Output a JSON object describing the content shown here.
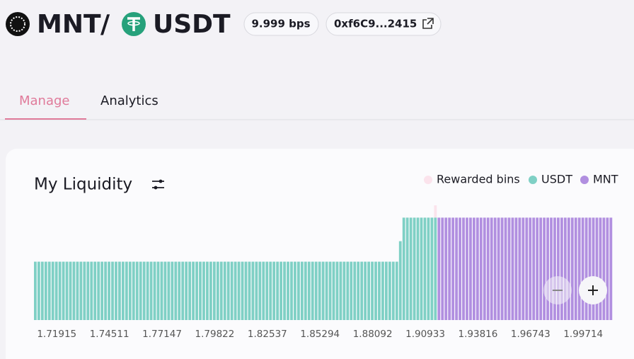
{
  "header": {
    "base": "MNT",
    "separator": "/",
    "quote": "USDT",
    "fee": "9.999 bps",
    "address": "0xf6C9...2415"
  },
  "tabs": [
    "Manage",
    "Analytics"
  ],
  "chart_data": {
    "type": "bar",
    "title": "My Liquidity",
    "categories": [
      null,
      null,
      null,
      null,
      null,
      null,
      "1.71915",
      null,
      null,
      null,
      null,
      null,
      null,
      null,
      null,
      null,
      null,
      null,
      null,
      null,
      null,
      "1.74511",
      null,
      null,
      null,
      null,
      null,
      null,
      null,
      null,
      null,
      null,
      null,
      null,
      null,
      null,
      "1.77147",
      null,
      null,
      null,
      null,
      null,
      null,
      null,
      null,
      null,
      null,
      null,
      null,
      null,
      null,
      "1.79822",
      null,
      null,
      null,
      null,
      null,
      null,
      null,
      null,
      null,
      null,
      null,
      null,
      null,
      null,
      "1.82537",
      null,
      null,
      null,
      null,
      null,
      null,
      null,
      null,
      null,
      null,
      null,
      null,
      null,
      null,
      "1.85294",
      null,
      null,
      null,
      null,
      null,
      null,
      null,
      null,
      null,
      null,
      null,
      null,
      null,
      null,
      "1.88092",
      null,
      null,
      null,
      null,
      null,
      null,
      null,
      null,
      null,
      null,
      null,
      null,
      null,
      null,
      "1.90933",
      null,
      null,
      null,
      null,
      null,
      null,
      null,
      null,
      null,
      null,
      null,
      null,
      null,
      null,
      "1.93816",
      null,
      null,
      null,
      null,
      null,
      null,
      null,
      null,
      null,
      null,
      null,
      null,
      null,
      null,
      "1.96743",
      null,
      null,
      null,
      null,
      null,
      null,
      null,
      null,
      null,
      null,
      null,
      null,
      null,
      null,
      "1.99714",
      null,
      null,
      null,
      null,
      null,
      null,
      null,
      null
    ],
    "series": [
      {
        "name": "Rewarded bins",
        "color": "#fbe3ec",
        "values": [
          null,
          null,
          null,
          null,
          null,
          null,
          null,
          null,
          null,
          null,
          null,
          null,
          null,
          null,
          null,
          null,
          null,
          null,
          null,
          null,
          null,
          null,
          null,
          null,
          null,
          null,
          null,
          null,
          null,
          null,
          null,
          null,
          null,
          null,
          null,
          null,
          null,
          null,
          null,
          null,
          null,
          null,
          null,
          null,
          null,
          null,
          null,
          null,
          null,
          null,
          null,
          null,
          null,
          null,
          null,
          null,
          null,
          null,
          null,
          null,
          null,
          null,
          null,
          null,
          null,
          null,
          null,
          null,
          null,
          null,
          null,
          null,
          null,
          null,
          null,
          null,
          null,
          null,
          null,
          null,
          null,
          null,
          null,
          null,
          null,
          null,
          null,
          null,
          null,
          null,
          null,
          null,
          null,
          null,
          null,
          null,
          null,
          null,
          null,
          null,
          null,
          null,
          null,
          null,
          null,
          null,
          null,
          null,
          null,
          null,
          null,
          null,
          null,
          null,
          112,
          null,
          null,
          null,
          null,
          null,
          null,
          null,
          null,
          null,
          null,
          null,
          null,
          null,
          null,
          null,
          null,
          null,
          null,
          null,
          null,
          null,
          null,
          null,
          null,
          null,
          null,
          null,
          null,
          null,
          null,
          null,
          null,
          null,
          null,
          null,
          null,
          null,
          null,
          null,
          null,
          null,
          null,
          null,
          null,
          null,
          null,
          null,
          null,
          null,
          null
        ]
      },
      {
        "name": "USDT",
        "color": "#7fd0c5",
        "values": [
          57,
          57,
          57,
          57,
          57,
          57,
          57,
          57,
          57,
          57,
          57,
          57,
          57,
          57,
          57,
          57,
          57,
          57,
          57,
          57,
          57,
          57,
          57,
          57,
          57,
          57,
          57,
          57,
          57,
          57,
          57,
          57,
          57,
          57,
          57,
          57,
          57,
          57,
          57,
          57,
          57,
          57,
          57,
          57,
          57,
          57,
          57,
          57,
          57,
          57,
          57,
          57,
          57,
          57,
          57,
          57,
          57,
          57,
          57,
          57,
          57,
          57,
          57,
          57,
          57,
          57,
          57,
          57,
          57,
          57,
          57,
          57,
          57,
          57,
          57,
          57,
          57,
          57,
          57,
          57,
          57,
          57,
          57,
          57,
          57,
          57,
          57,
          57,
          57,
          57,
          57,
          57,
          57,
          57,
          57,
          57,
          57,
          57,
          57,
          57,
          57,
          57,
          57,
          57,
          77,
          100,
          100,
          100,
          100,
          100,
          100,
          100,
          100,
          100,
          100,
          null,
          null,
          null,
          null,
          null,
          null,
          null,
          null,
          null,
          null,
          null,
          null,
          null,
          null,
          null,
          null,
          null,
          null,
          null,
          null,
          null,
          null,
          null,
          null,
          null,
          null,
          null,
          null,
          null,
          null,
          null,
          null,
          null,
          null,
          null,
          null,
          null,
          null,
          null,
          null,
          null,
          null,
          null,
          null,
          null,
          null,
          null,
          null,
          null,
          null
        ]
      },
      {
        "name": "MNT",
        "color": "#b18fe0",
        "values": [
          null,
          null,
          null,
          null,
          null,
          null,
          null,
          null,
          null,
          null,
          null,
          null,
          null,
          null,
          null,
          null,
          null,
          null,
          null,
          null,
          null,
          null,
          null,
          null,
          null,
          null,
          null,
          null,
          null,
          null,
          null,
          null,
          null,
          null,
          null,
          null,
          null,
          null,
          null,
          null,
          null,
          null,
          null,
          null,
          null,
          null,
          null,
          null,
          null,
          null,
          null,
          null,
          null,
          null,
          null,
          null,
          null,
          null,
          null,
          null,
          null,
          null,
          null,
          null,
          null,
          null,
          null,
          null,
          null,
          null,
          null,
          null,
          null,
          null,
          null,
          null,
          null,
          null,
          null,
          null,
          null,
          null,
          null,
          null,
          null,
          null,
          null,
          null,
          null,
          null,
          null,
          null,
          null,
          null,
          null,
          null,
          null,
          null,
          null,
          null,
          null,
          null,
          null,
          null,
          null,
          null,
          null,
          null,
          null,
          null,
          null,
          null,
          null,
          null,
          null,
          100,
          100,
          100,
          100,
          100,
          100,
          100,
          100,
          100,
          100,
          100,
          100,
          100,
          100,
          100,
          100,
          100,
          100,
          100,
          100,
          100,
          100,
          100,
          100,
          100,
          100,
          100,
          100,
          100,
          100,
          100,
          100,
          100,
          100,
          100,
          100,
          100,
          100,
          100,
          100,
          100,
          100,
          100,
          100,
          100,
          100,
          100,
          100,
          100,
          100
        ]
      }
    ]
  }
}
